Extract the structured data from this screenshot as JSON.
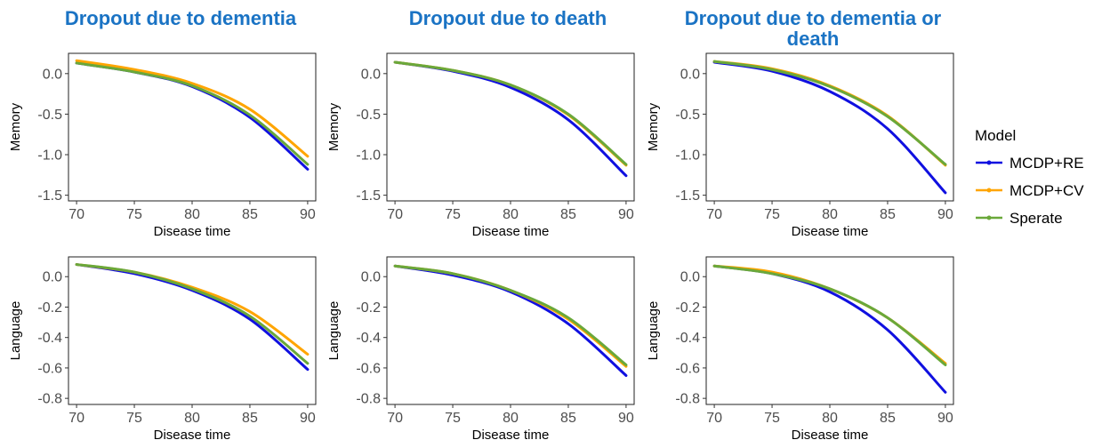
{
  "colors": {
    "title": "#1a73c4",
    "MCDP+RE": "#1010e0",
    "MCDP+CV": "#ffa500",
    "Sperate": "#6aa83a"
  },
  "column_titles": [
    [
      "Dropout due to dementia"
    ],
    [
      "Dropout due to death"
    ],
    [
      "Dropout due to dementia or",
      "death"
    ]
  ],
  "legend": {
    "title": "Model",
    "entries": [
      "MCDP+RE",
      "MCDP+CV",
      "Sperate"
    ]
  },
  "chart_data": [
    {
      "type": "line",
      "xlabel": "Disease time",
      "ylabel": "Memory",
      "xlim": [
        69.3,
        90.7
      ],
      "ylim": [
        -1.57,
        0.25
      ],
      "xticks": [
        70,
        75,
        80,
        85,
        90
      ],
      "yticks": [
        0.0,
        -0.5,
        -1.0,
        -1.5
      ],
      "ytick_labels": [
        "0.0",
        "-0.5",
        "-1.0",
        "-1.5"
      ],
      "x": [
        70,
        75,
        80,
        85,
        90
      ],
      "series": [
        {
          "name": "MCDP+RE",
          "values": [
            0.13,
            0.02,
            -0.16,
            -0.54,
            -1.18
          ]
        },
        {
          "name": "MCDP+CV",
          "values": [
            0.16,
            0.05,
            -0.12,
            -0.44,
            -1.02
          ]
        },
        {
          "name": "Sperate",
          "values": [
            0.13,
            0.02,
            -0.15,
            -0.51,
            -1.12
          ]
        }
      ]
    },
    {
      "type": "line",
      "xlabel": "Disease time",
      "ylabel": "Memory",
      "xlim": [
        69.3,
        90.7
      ],
      "ylim": [
        -1.57,
        0.25
      ],
      "xticks": [
        70,
        75,
        80,
        85,
        90
      ],
      "yticks": [
        0.0,
        -0.5,
        -1.0,
        -1.5
      ],
      "ytick_labels": [
        "0.0",
        "-0.5",
        "-1.0",
        "-1.5"
      ],
      "x": [
        70,
        75,
        80,
        85,
        90
      ],
      "series": [
        {
          "name": "MCDP+RE",
          "values": [
            0.14,
            0.03,
            -0.17,
            -0.57,
            -1.26
          ]
        },
        {
          "name": "MCDP+CV",
          "values": [
            0.14,
            0.04,
            -0.14,
            -0.51,
            -1.13
          ]
        },
        {
          "name": "Sperate",
          "values": [
            0.14,
            0.04,
            -0.14,
            -0.5,
            -1.12
          ]
        }
      ]
    },
    {
      "type": "line",
      "xlabel": "Disease time",
      "ylabel": "Memory",
      "xlim": [
        69.3,
        90.7
      ],
      "ylim": [
        -1.57,
        0.25
      ],
      "xticks": [
        70,
        75,
        80,
        85,
        90
      ],
      "yticks": [
        0.0,
        -0.5,
        -1.0,
        -1.5
      ],
      "ytick_labels": [
        "0.0",
        "-0.5",
        "-1.0",
        "-1.5"
      ],
      "x": [
        70,
        75,
        80,
        85,
        90
      ],
      "series": [
        {
          "name": "MCDP+RE",
          "values": [
            0.14,
            0.03,
            -0.22,
            -0.68,
            -1.47
          ]
        },
        {
          "name": "MCDP+CV",
          "values": [
            0.15,
            0.06,
            -0.15,
            -0.52,
            -1.13
          ]
        },
        {
          "name": "Sperate",
          "values": [
            0.15,
            0.05,
            -0.16,
            -0.53,
            -1.12
          ]
        }
      ]
    },
    {
      "type": "line",
      "xlabel": "Disease time",
      "ylabel": "Language",
      "xlim": [
        69.3,
        90.7
      ],
      "ylim": [
        -0.84,
        0.13
      ],
      "xticks": [
        70,
        75,
        80,
        85,
        90
      ],
      "yticks": [
        0.0,
        -0.2,
        -0.4,
        -0.6,
        -0.8
      ],
      "ytick_labels": [
        "0.0",
        "-0.2",
        "-0.4",
        "-0.6",
        "-0.8"
      ],
      "x": [
        70,
        75,
        80,
        85,
        90
      ],
      "series": [
        {
          "name": "MCDP+RE",
          "values": [
            0.08,
            0.02,
            -0.09,
            -0.28,
            -0.61
          ]
        },
        {
          "name": "MCDP+CV",
          "values": [
            0.08,
            0.03,
            -0.07,
            -0.23,
            -0.51
          ]
        },
        {
          "name": "Sperate",
          "values": [
            0.08,
            0.03,
            -0.08,
            -0.26,
            -0.57
          ]
        }
      ]
    },
    {
      "type": "line",
      "xlabel": "Disease time",
      "ylabel": "Language",
      "xlim": [
        69.3,
        90.7
      ],
      "ylim": [
        -0.84,
        0.13
      ],
      "xticks": [
        70,
        75,
        80,
        85,
        90
      ],
      "yticks": [
        0.0,
        -0.2,
        -0.4,
        -0.6,
        -0.8
      ],
      "ytick_labels": [
        "0.0",
        "-0.2",
        "-0.4",
        "-0.6",
        "-0.8"
      ],
      "x": [
        70,
        75,
        80,
        85,
        90
      ],
      "series": [
        {
          "name": "MCDP+RE",
          "values": [
            0.07,
            0.01,
            -0.1,
            -0.31,
            -0.65
          ]
        },
        {
          "name": "MCDP+CV",
          "values": [
            0.07,
            0.02,
            -0.09,
            -0.28,
            -0.59
          ]
        },
        {
          "name": "Sperate",
          "values": [
            0.07,
            0.02,
            -0.09,
            -0.27,
            -0.58
          ]
        }
      ]
    },
    {
      "type": "line",
      "xlabel": "Disease time",
      "ylabel": "Language",
      "xlim": [
        69.3,
        90.7
      ],
      "ylim": [
        -0.84,
        0.13
      ],
      "xticks": [
        70,
        75,
        80,
        85,
        90
      ],
      "yticks": [
        0.0,
        -0.2,
        -0.4,
        -0.6,
        -0.8
      ],
      "ytick_labels": [
        "0.0",
        "-0.2",
        "-0.4",
        "-0.6",
        "-0.8"
      ],
      "x": [
        70,
        75,
        80,
        85,
        90
      ],
      "series": [
        {
          "name": "MCDP+RE",
          "values": [
            0.07,
            0.02,
            -0.1,
            -0.35,
            -0.76
          ]
        },
        {
          "name": "MCDP+CV",
          "values": [
            0.07,
            0.03,
            -0.08,
            -0.27,
            -0.57
          ]
        },
        {
          "name": "Sperate",
          "values": [
            0.07,
            0.02,
            -0.08,
            -0.27,
            -0.58
          ]
        }
      ]
    }
  ]
}
